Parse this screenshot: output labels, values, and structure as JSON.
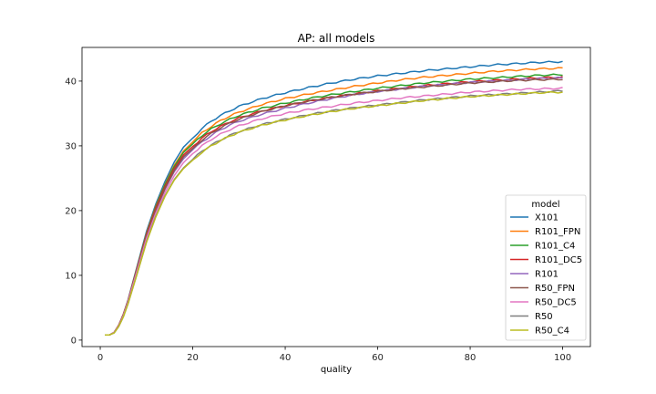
{
  "chart_data": {
    "type": "line",
    "title": "AP: all models",
    "xlabel": "quality",
    "ylabel": "",
    "xlim": [
      -3.95,
      106
    ],
    "ylim": [
      -1.0,
      45.2
    ],
    "xticks": [
      0,
      20,
      40,
      60,
      80,
      100
    ],
    "yticks": [
      0,
      10,
      20,
      30,
      40
    ],
    "grid": false,
    "legend": {
      "title": "model",
      "position": "lower-right"
    },
    "curve_x": [
      1,
      2,
      3,
      4,
      5,
      6,
      8,
      10,
      12,
      14,
      16,
      18,
      20,
      22,
      24,
      26,
      28,
      30,
      35,
      40,
      45,
      50,
      55,
      60,
      65,
      70,
      75,
      80,
      85,
      90,
      95,
      100
    ],
    "series": [
      {
        "name": "X101",
        "color": "#1f77b4",
        "values": [
          0.8,
          0.8,
          1.2,
          2.3,
          4.0,
          6.2,
          11.5,
          16.8,
          21.0,
          24.5,
          27.5,
          29.8,
          31.2,
          32.7,
          33.8,
          34.7,
          35.4,
          36.1,
          37.3,
          38.2,
          39.0,
          39.7,
          40.3,
          40.8,
          41.2,
          41.6,
          41.9,
          42.2,
          42.5,
          42.7,
          42.9,
          43.0
        ]
      },
      {
        "name": "R101_FPN",
        "color": "#ff7f0e",
        "values": [
          0.8,
          0.8,
          1.2,
          2.3,
          4.0,
          6.1,
          11.3,
          16.5,
          20.7,
          24.1,
          27.0,
          29.2,
          30.6,
          32.0,
          33.0,
          33.9,
          34.6,
          35.2,
          36.4,
          37.3,
          38.0,
          38.6,
          39.2,
          39.7,
          40.2,
          40.6,
          40.9,
          41.2,
          41.5,
          41.7,
          41.9,
          42.0
        ]
      },
      {
        "name": "R101_C4",
        "color": "#2ca02c",
        "values": [
          0.8,
          0.8,
          1.2,
          2.3,
          4.0,
          6.1,
          11.3,
          16.4,
          20.6,
          24.0,
          26.8,
          29.0,
          30.3,
          31.6,
          32.6,
          33.4,
          34.1,
          34.7,
          35.8,
          36.6,
          37.3,
          37.9,
          38.4,
          38.9,
          39.3,
          39.7,
          40.0,
          40.3,
          40.5,
          40.7,
          40.9,
          41.0
        ]
      },
      {
        "name": "R101_DC5",
        "color": "#d62728",
        "values": [
          0.8,
          0.8,
          1.2,
          2.3,
          4.0,
          6.1,
          11.2,
          16.3,
          20.4,
          23.7,
          26.5,
          28.6,
          29.9,
          31.2,
          32.2,
          33.0,
          33.7,
          34.3,
          35.4,
          36.2,
          36.9,
          37.5,
          38.0,
          38.5,
          38.9,
          39.3,
          39.6,
          39.9,
          40.1,
          40.3,
          40.5,
          40.6
        ]
      },
      {
        "name": "R101",
        "color": "#9467bd",
        "values": [
          0.8,
          0.8,
          1.2,
          2.2,
          3.9,
          6.0,
          11.0,
          16.0,
          20.0,
          23.3,
          26.0,
          28.0,
          29.4,
          30.6,
          31.6,
          32.5,
          33.2,
          33.8,
          34.9,
          35.8,
          36.6,
          37.3,
          37.9,
          38.4,
          38.8,
          39.2,
          39.5,
          39.8,
          40.0,
          40.2,
          40.4,
          40.5
        ]
      },
      {
        "name": "R50_FPN",
        "color": "#8c564b",
        "values": [
          0.8,
          0.8,
          1.2,
          2.2,
          3.9,
          6.0,
          11.0,
          16.0,
          20.0,
          23.4,
          26.2,
          28.3,
          29.6,
          30.9,
          31.9,
          32.8,
          33.5,
          34.1,
          35.3,
          36.2,
          36.9,
          37.5,
          38.0,
          38.4,
          38.8,
          39.1,
          39.4,
          39.7,
          39.9,
          40.1,
          40.2,
          40.3
        ]
      },
      {
        "name": "R50_DC5",
        "color": "#e377c2",
        "values": [
          0.8,
          0.8,
          1.2,
          2.2,
          3.8,
          5.9,
          10.8,
          15.7,
          19.6,
          22.8,
          25.4,
          27.4,
          28.8,
          30.0,
          31.0,
          31.8,
          32.5,
          33.1,
          34.2,
          35.0,
          35.6,
          36.1,
          36.6,
          37.0,
          37.4,
          37.7,
          38.0,
          38.3,
          38.5,
          38.7,
          38.8,
          38.9
        ]
      },
      {
        "name": "R50",
        "color": "#7f7f7f",
        "values": [
          0.8,
          0.8,
          1.1,
          2.1,
          3.6,
          5.6,
          10.3,
          15.2,
          19.1,
          22.3,
          24.8,
          26.6,
          27.9,
          29.2,
          30.1,
          30.9,
          31.6,
          32.2,
          33.3,
          34.1,
          34.8,
          35.4,
          35.9,
          36.3,
          36.7,
          37.1,
          37.4,
          37.7,
          37.9,
          38.1,
          38.3,
          38.5
        ]
      },
      {
        "name": "R50_C4",
        "color": "#bcbd22",
        "values": [
          0.8,
          0.8,
          1.1,
          2.1,
          3.6,
          5.6,
          10.3,
          15.1,
          19.0,
          22.2,
          24.7,
          26.5,
          27.8,
          29.0,
          30.0,
          30.8,
          31.5,
          32.1,
          33.2,
          34.0,
          34.7,
          35.3,
          35.8,
          36.2,
          36.6,
          37.0,
          37.3,
          37.6,
          37.8,
          38.0,
          38.2,
          38.3
        ]
      }
    ]
  }
}
